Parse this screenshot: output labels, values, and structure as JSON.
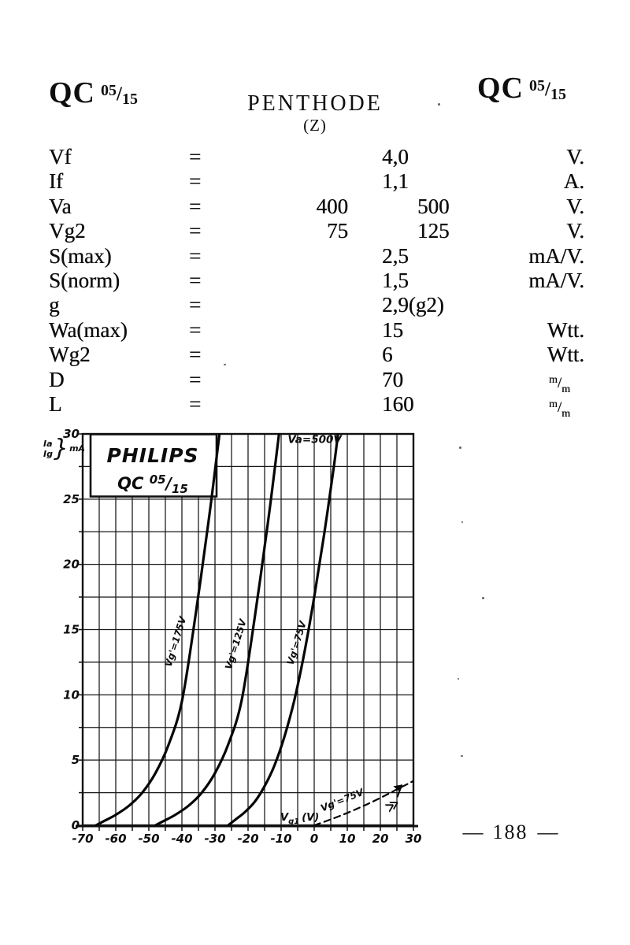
{
  "header": {
    "model_left": {
      "prefix": "QC",
      "frac_top": "05",
      "frac_slash": "/",
      "frac_bottom": "15"
    },
    "title": "PENTHODE",
    "subtitle": "(Z)",
    "model_right": {
      "prefix": "QC",
      "frac_top": "05",
      "frac_slash": "/",
      "frac_bottom": "15"
    }
  },
  "specs": {
    "equals": "=",
    "rows": [
      {
        "label": "Vf",
        "v2": "4,0",
        "unit": "V."
      },
      {
        "label": "If",
        "v2": "1,1",
        "unit": "A."
      },
      {
        "label": "Va",
        "v1": "400",
        "v3": "500",
        "unit": "V."
      },
      {
        "label": "Vg2",
        "v1": "75",
        "v3": "125",
        "unit": "V."
      },
      {
        "label": "S(max)",
        "v2": "2,5",
        "unit": "mA/V."
      },
      {
        "label": "S(norm)",
        "v2": "1,5",
        "unit": "mA/V."
      },
      {
        "label": "g",
        "v2": "2,9(g2)",
        "unit": ""
      },
      {
        "label": "Wa(max)",
        "v2": "15",
        "unit": "Wtt."
      },
      {
        "label": "Wg2",
        "v2": "6",
        "unit": "Wtt."
      },
      {
        "label": "D",
        "v2": "70",
        "unit": "",
        "unit_top": "m",
        "unit_slash": "/",
        "unit_bottom": "m"
      },
      {
        "label": "L",
        "v2": "160",
        "unit": "",
        "unit_top": "m",
        "unit_slash": "/",
        "unit_bottom": "m"
      }
    ]
  },
  "chart_data": {
    "type": "line",
    "brand_box": {
      "line1": "PHILIPS",
      "line2_prefix": "QC",
      "line2_top": "05",
      "line2_slash": "/",
      "line2_bottom": "15"
    },
    "xlabel_parts": {
      "base": "V",
      "sub": "g1",
      "paren": "(V)"
    },
    "ylabel_parts": {
      "line1": "Ia",
      "line2": "Ig",
      "brace": "}",
      "unit": "mA"
    },
    "xlim": [
      -70,
      30
    ],
    "ylim": [
      0,
      30
    ],
    "grid_step_x": 5,
    "grid_step_y": 2.5,
    "x_ticks": [
      -70,
      -60,
      -50,
      -40,
      -30,
      -20,
      -10,
      0,
      10,
      20,
      30
    ],
    "y_ticks": [
      0,
      5,
      10,
      15,
      20,
      25,
      30
    ],
    "grid": true,
    "series": [
      {
        "id": "vg-175",
        "name": "Vg'=175V",
        "style": "solid",
        "label": {
          "x": -41.0,
          "y": 14.0,
          "angle": -73
        },
        "points": [
          [
            -66,
            0
          ],
          [
            -63,
            0.4
          ],
          [
            -60,
            0.8
          ],
          [
            -56,
            1.5
          ],
          [
            -52,
            2.5
          ],
          [
            -48,
            4.0
          ],
          [
            -44,
            6.2
          ],
          [
            -40,
            9.5
          ],
          [
            -36,
            15.9
          ],
          [
            -32,
            23.2
          ],
          [
            -30,
            27.2
          ],
          [
            -28.5,
            30.3
          ]
        ]
      },
      {
        "id": "vg-125",
        "name": "Vg'=125V",
        "style": "solid",
        "label": {
          "x": -22.8,
          "y": 13.8,
          "angle": -73
        },
        "points": [
          [
            -48,
            0
          ],
          [
            -45,
            0.4
          ],
          [
            -42,
            0.8
          ],
          [
            -38,
            1.5
          ],
          [
            -34,
            2.5
          ],
          [
            -30,
            4.0
          ],
          [
            -26,
            6.2
          ],
          [
            -22,
            9.5
          ],
          [
            -18,
            15.9
          ],
          [
            -14,
            23.2
          ],
          [
            -12,
            27.2
          ],
          [
            -10.5,
            30.3
          ]
        ]
      },
      {
        "id": "vg-75",
        "name": "Vg'=75V",
        "style": "solid",
        "label": {
          "x": -4.4,
          "y": 13.9,
          "angle": -73
        },
        "points": [
          [
            -26,
            0
          ],
          [
            -23.5,
            0.5
          ],
          [
            -21,
            1.0
          ],
          [
            -18,
            1.8
          ],
          [
            -15,
            3.0
          ],
          [
            -12,
            4.6
          ],
          [
            -9,
            6.8
          ],
          [
            -6,
            9.6
          ],
          [
            -3,
            13.2
          ],
          [
            0,
            17.5
          ],
          [
            3,
            22.3
          ],
          [
            6,
            27.6
          ],
          [
            7.3,
            30.3
          ]
        ]
      },
      {
        "id": "ig-75",
        "name": "Vg'=75V",
        "style": "dashed",
        "label": {
          "x": 8.8,
          "y": 1.7,
          "angle": -22
        },
        "points": [
          [
            0,
            0
          ],
          [
            5,
            0.45
          ],
          [
            10,
            0.95
          ],
          [
            15,
            1.5
          ],
          [
            20,
            2.1
          ],
          [
            25,
            2.75
          ],
          [
            30,
            3.4
          ]
        ]
      }
    ],
    "annotations": [
      {
        "type": "text",
        "text": "Va=500V",
        "x": -8.0,
        "y": 29.3,
        "angle": 0
      },
      {
        "type": "chevron",
        "text": "≫",
        "x": 24.3,
        "y": 1.25,
        "angle": -30
      },
      {
        "type": "flag",
        "x": 25.1,
        "y": 2.15
      }
    ]
  },
  "page_number": {
    "left": "—",
    "value": "188",
    "right": "—"
  }
}
